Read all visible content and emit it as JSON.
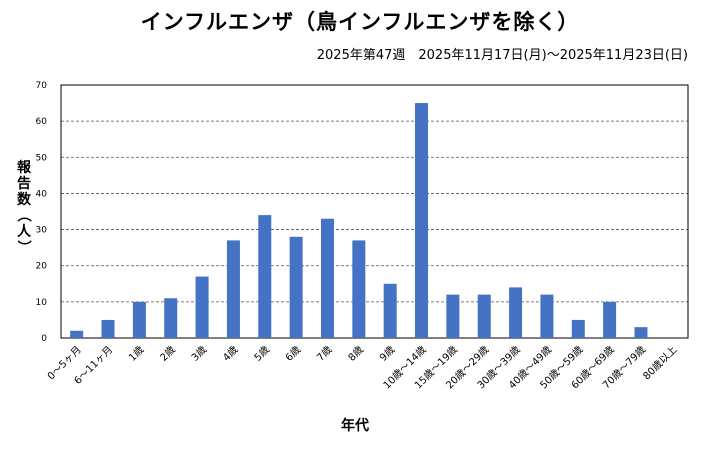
{
  "chart_data": {
    "type": "bar",
    "title": "インフルエンザ（鳥インフルエンザを除く）",
    "subtitle": "2025年第47週　2025年11月17日(月)～2025年11月23日(日)",
    "xlabel": "年代",
    "ylabel": "報告数（人）",
    "ylim": [
      0,
      70
    ],
    "yticks": [
      0,
      10,
      20,
      30,
      40,
      50,
      60,
      70
    ],
    "grid": true,
    "bar_color": "#4472C4",
    "categories": [
      "0～5ヶ月",
      "6～11ヶ月",
      "1歳",
      "2歳",
      "3歳",
      "4歳",
      "5歳",
      "6歳",
      "7歳",
      "8歳",
      "9歳",
      "10歳～14歳",
      "15歳～19歳",
      "20歳～29歳",
      "30歳～39歳",
      "40歳～49歳",
      "50歳～59歳",
      "60歳～69歳",
      "70歳～79歳",
      "80歳以上"
    ],
    "values": [
      2,
      5,
      10,
      11,
      17,
      27,
      34,
      28,
      33,
      27,
      15,
      65,
      12,
      12,
      14,
      12,
      5,
      10,
      3,
      0
    ]
  }
}
